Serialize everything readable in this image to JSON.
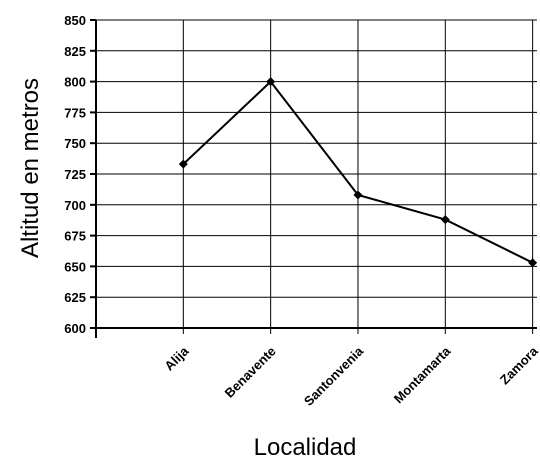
{
  "chart_data": {
    "type": "line",
    "categories": [
      "Alija",
      "Benavente",
      "Santonvenia",
      "Montamarta",
      "Zamora"
    ],
    "series": [
      {
        "values": [
          733,
          800,
          708,
          688,
          653
        ]
      }
    ],
    "xlabel": "Localidad",
    "ylabel": "Altitud en metros",
    "ylim": [
      600,
      850
    ],
    "yticks": [
      600,
      625,
      650,
      675,
      700,
      725,
      750,
      775,
      800,
      825,
      850
    ],
    "grid": true,
    "line_color": "#000000",
    "marker": "diamond"
  }
}
